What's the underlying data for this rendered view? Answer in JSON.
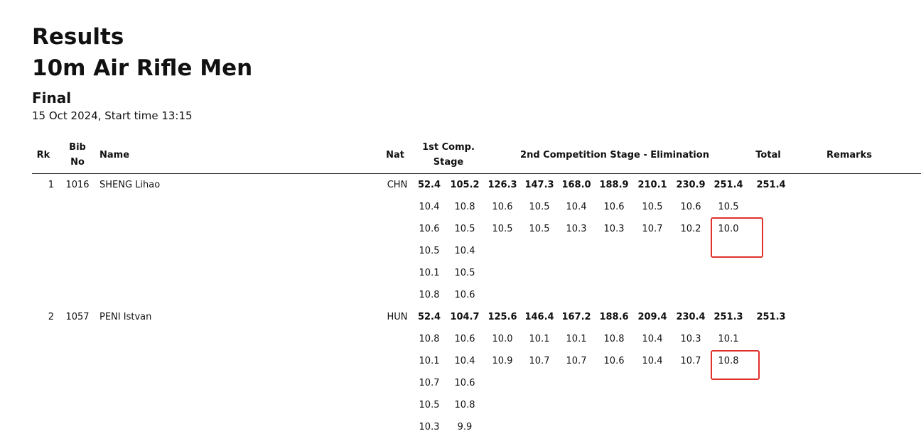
{
  "header": {
    "title": "Results",
    "event": "10m Air Rifle Men",
    "phase": "Final",
    "date": "15 Oct 2024, Start time 13:15"
  },
  "table": {
    "columns": [
      "Rk",
      "Bib No",
      "Name",
      "Nat",
      "1st Comp. Stage",
      "2nd Competition Stage - Elimination",
      "Total",
      "Remarks"
    ],
    "athletes": [
      {
        "rank": "1",
        "bib": "1016",
        "name": "SHENG Lihao",
        "nat": "CHN",
        "series": [
          "52.4",
          "105.2",
          "126.3",
          "147.3",
          "168.0",
          "188.9",
          "210.1",
          "230.9",
          "251.4"
        ],
        "total": "251.4",
        "shots": [
          [
            "10.4",
            "10.8",
            "10.6",
            "10.5",
            "10.4",
            "10.6",
            "10.5",
            "10.6",
            "10.5"
          ],
          [
            "10.6",
            "10.5",
            "10.5",
            "10.5",
            "10.3",
            "10.3",
            "10.7",
            "10.2",
            "10.0"
          ],
          [
            "10.5",
            "10.4"
          ],
          [
            "10.1",
            "10.5"
          ],
          [
            "10.8",
            "10.6"
          ]
        ]
      },
      {
        "rank": "2",
        "bib": "1057",
        "name": "PENI Istvan",
        "nat": "HUN",
        "series": [
          "52.4",
          "104.7",
          "125.6",
          "146.4",
          "167.2",
          "188.6",
          "209.4",
          "230.4",
          "251.3"
        ],
        "total": "251.3",
        "shots": [
          [
            "10.8",
            "10.6",
            "10.0",
            "10.1",
            "10.1",
            "10.8",
            "10.4",
            "10.3",
            "10.1"
          ],
          [
            "10.1",
            "10.4",
            "10.9",
            "10.7",
            "10.7",
            "10.6",
            "10.4",
            "10.7",
            "10.8"
          ],
          [
            "10.7",
            "10.6"
          ],
          [
            "10.5",
            "10.8"
          ],
          [
            "10.3",
            "9.9"
          ]
        ]
      }
    ]
  }
}
